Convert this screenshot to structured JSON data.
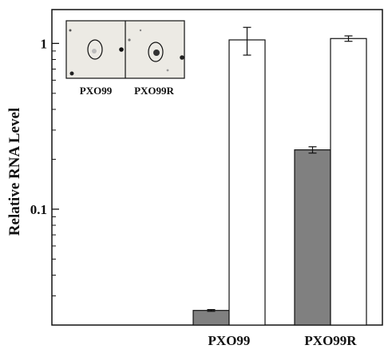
{
  "chart_data": {
    "type": "bar",
    "title": "",
    "xlabel": "",
    "ylabel": "Relative RNA Level",
    "y_scale": "log",
    "ylim": [
      0.02,
      1.6
    ],
    "yticks": [
      {
        "value": 0.1,
        "label": "0.1"
      },
      {
        "value": 1,
        "label": "1"
      }
    ],
    "grid": false,
    "categories": [
      "PXO99",
      "PXO99R"
    ],
    "series": [
      {
        "color": "#808080",
        "values": [
          0.0245,
          0.228
        ],
        "errors": [
          0.0003,
          0.01
        ]
      },
      {
        "color": "#ffffff",
        "values": [
          1.05,
          1.07
        ],
        "errors": [
          0.2,
          0.04
        ]
      }
    ],
    "inset": {
      "panels": [
        {
          "label": "PXO99"
        },
        {
          "label": "PXO99R"
        }
      ]
    }
  },
  "colors": {
    "bar_dark": "#808080",
    "bar_light": "#ffffff",
    "axis": "#111111"
  }
}
